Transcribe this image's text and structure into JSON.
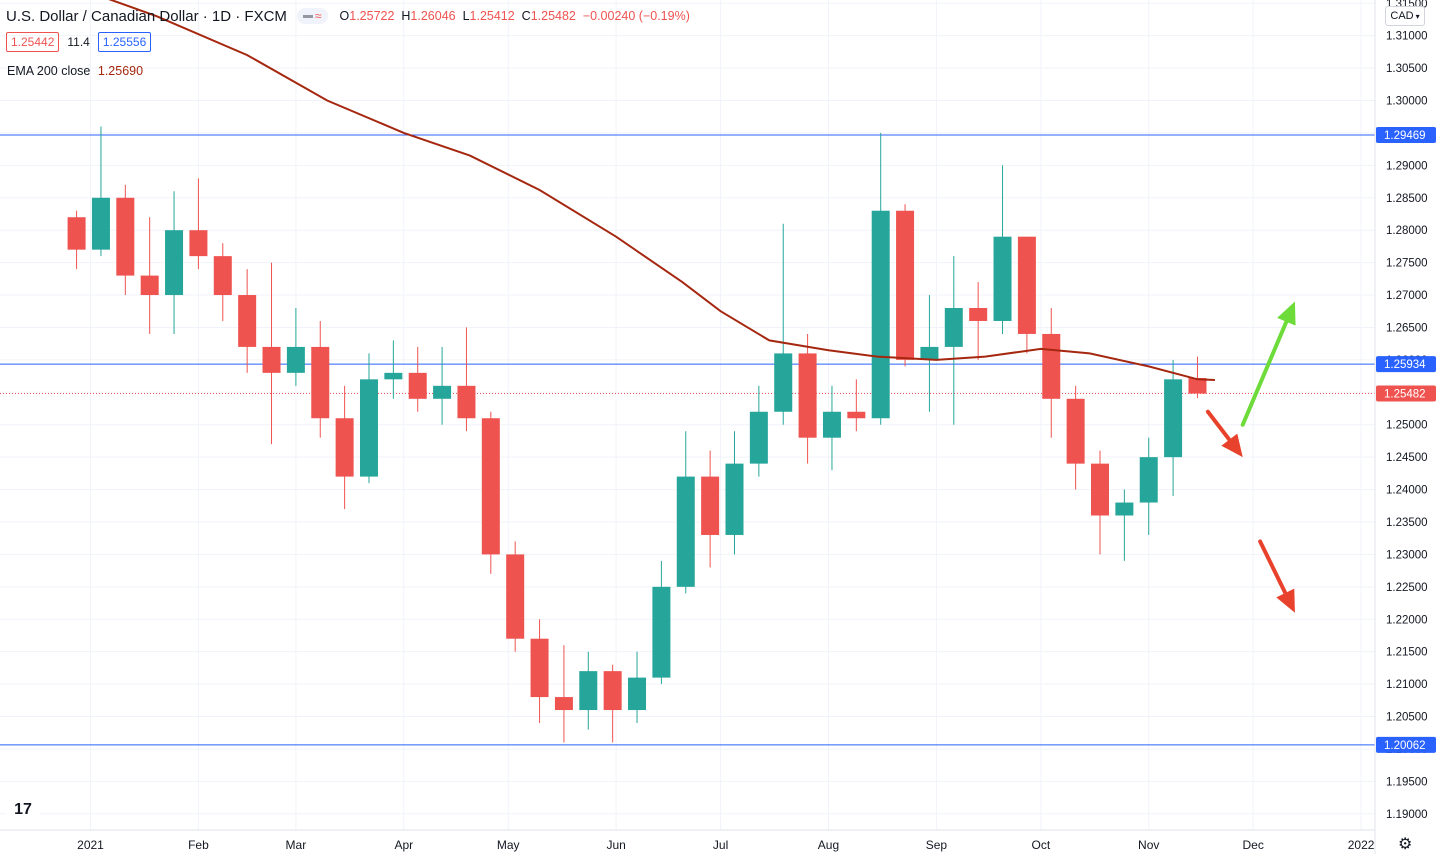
{
  "header": {
    "title": "U.S. Dollar / Canadian Dollar · 1D · FXCM",
    "pill_symbol": "≈",
    "ohlc": {
      "o_label": "O",
      "o": "1.25722",
      "h_label": "H",
      "h": "1.26046",
      "l_label": "L",
      "l": "1.25412",
      "c_label": "C",
      "c": "1.25482",
      "change": "−0.00240 (−0.19%)"
    },
    "bid": "1.25442",
    "spread": "11.4",
    "ask": "1.25556",
    "indicator_name": "EMA 200 close",
    "indicator_value": "1.25690"
  },
  "currency_button": "CAD",
  "logo_text": "17",
  "colors": {
    "up": "#26a69a",
    "down": "#ef5350",
    "ema": "#a5270f",
    "hline": "#2962ff",
    "arrow_green": "#6ddc3a",
    "arrow_red": "#e8412c"
  },
  "chart_data": {
    "type": "candlestick",
    "title": "U.S. Dollar / Canadian Dollar · 1D · FXCM",
    "ylim": [
      1.1875,
      1.3155
    ],
    "y_ticks": [
      "1.31500",
      "1.31000",
      "1.30500",
      "1.30000",
      "1.29500",
      "1.29000",
      "1.28500",
      "1.28000",
      "1.27500",
      "1.27000",
      "1.26500",
      "1.26000",
      "1.25500",
      "1.25000",
      "1.24500",
      "1.24000",
      "1.23500",
      "1.23000",
      "1.22500",
      "1.22000",
      "1.21500",
      "1.21000",
      "1.20500",
      "1.20000",
      "1.19500",
      "1.19000"
    ],
    "x_ticks": [
      {
        "label": "2021",
        "date": "2021-01-01"
      },
      {
        "label": "Feb",
        "date": "2021-02-01"
      },
      {
        "label": "Mar",
        "date": "2021-03-01"
      },
      {
        "label": "Apr",
        "date": "2021-04-01"
      },
      {
        "label": "May",
        "date": "2021-05-01"
      },
      {
        "label": "Jun",
        "date": "2021-06-01"
      },
      {
        "label": "Jul",
        "date": "2021-07-01"
      },
      {
        "label": "Aug",
        "date": "2021-08-01"
      },
      {
        "label": "Sep",
        "date": "2021-09-01"
      },
      {
        "label": "Oct",
        "date": "2021-10-01"
      },
      {
        "label": "Nov",
        "date": "2021-11-01"
      },
      {
        "label": "Dec",
        "date": "2021-12-01"
      },
      {
        "label": "2022",
        "date": "2022-01-01"
      }
    ],
    "x_range": [
      "2020-12-06",
      "2022-01-05"
    ],
    "price_levels": [
      {
        "value": 1.29469,
        "label": "1.29469",
        "style": "solid"
      },
      {
        "value": 1.25934,
        "label": "1.25934",
        "style": "solid"
      },
      {
        "value": 1.25482,
        "label": "1.25482",
        "style": "dotted-last-price"
      },
      {
        "value": 1.20062,
        "label": "1.20062",
        "style": "solid"
      }
    ],
    "ema_200": [
      {
        "date": "2020-12-25",
        "v": 1.318
      },
      {
        "date": "2021-01-20",
        "v": 1.313
      },
      {
        "date": "2021-02-15",
        "v": 1.307
      },
      {
        "date": "2021-03-10",
        "v": 1.3
      },
      {
        "date": "2021-04-01",
        "v": 1.295
      },
      {
        "date": "2021-04-20",
        "v": 1.2915
      },
      {
        "date": "2021-05-10",
        "v": 1.2862
      },
      {
        "date": "2021-06-01",
        "v": 1.279
      },
      {
        "date": "2021-06-20",
        "v": 1.272
      },
      {
        "date": "2021-07-01",
        "v": 1.2675
      },
      {
        "date": "2021-07-15",
        "v": 1.263
      },
      {
        "date": "2021-08-01",
        "v": 1.2615
      },
      {
        "date": "2021-08-15",
        "v": 1.2605
      },
      {
        "date": "2021-09-01",
        "v": 1.26
      },
      {
        "date": "2021-09-15",
        "v": 1.2605
      },
      {
        "date": "2021-10-01",
        "v": 1.2617
      },
      {
        "date": "2021-10-15",
        "v": 1.261
      },
      {
        "date": "2021-11-01",
        "v": 1.259
      },
      {
        "date": "2021-11-15",
        "v": 1.257
      },
      {
        "date": "2021-11-20",
        "v": 1.2569
      }
    ],
    "candles": [
      {
        "d": "2020-12-28",
        "o": 1.282,
        "h": 1.283,
        "l": 1.274,
        "c": 1.277
      },
      {
        "d": "2021-01-04",
        "o": 1.277,
        "h": 1.296,
        "l": 1.276,
        "c": 1.285
      },
      {
        "d": "2021-01-11",
        "o": 1.285,
        "h": 1.287,
        "l": 1.27,
        "c": 1.273
      },
      {
        "d": "2021-01-18",
        "o": 1.273,
        "h": 1.282,
        "l": 1.264,
        "c": 1.27
      },
      {
        "d": "2021-01-25",
        "o": 1.27,
        "h": 1.286,
        "l": 1.264,
        "c": 1.28
      },
      {
        "d": "2021-02-01",
        "o": 1.28,
        "h": 1.288,
        "l": 1.274,
        "c": 1.276
      },
      {
        "d": "2021-02-08",
        "o": 1.276,
        "h": 1.278,
        "l": 1.266,
        "c": 1.27
      },
      {
        "d": "2021-02-15",
        "o": 1.27,
        "h": 1.274,
        "l": 1.258,
        "c": 1.262
      },
      {
        "d": "2021-02-22",
        "o": 1.262,
        "h": 1.275,
        "l": 1.247,
        "c": 1.258
      },
      {
        "d": "2021-03-01",
        "o": 1.258,
        "h": 1.268,
        "l": 1.256,
        "c": 1.262
      },
      {
        "d": "2021-03-08",
        "o": 1.262,
        "h": 1.266,
        "l": 1.248,
        "c": 1.251
      },
      {
        "d": "2021-03-15",
        "o": 1.251,
        "h": 1.256,
        "l": 1.237,
        "c": 1.242
      },
      {
        "d": "2021-03-22",
        "o": 1.242,
        "h": 1.261,
        "l": 1.241,
        "c": 1.257
      },
      {
        "d": "2021-03-29",
        "o": 1.257,
        "h": 1.263,
        "l": 1.254,
        "c": 1.258
      },
      {
        "d": "2021-04-05",
        "o": 1.258,
        "h": 1.262,
        "l": 1.252,
        "c": 1.254
      },
      {
        "d": "2021-04-12",
        "o": 1.254,
        "h": 1.262,
        "l": 1.25,
        "c": 1.256
      },
      {
        "d": "2021-04-19",
        "o": 1.256,
        "h": 1.265,
        "l": 1.249,
        "c": 1.251
      },
      {
        "d": "2021-04-26",
        "o": 1.251,
        "h": 1.252,
        "l": 1.227,
        "c": 1.23
      },
      {
        "d": "2021-05-03",
        "o": 1.23,
        "h": 1.232,
        "l": 1.215,
        "c": 1.217
      },
      {
        "d": "2021-05-10",
        "o": 1.217,
        "h": 1.22,
        "l": 1.204,
        "c": 1.208
      },
      {
        "d": "2021-05-17",
        "o": 1.208,
        "h": 1.216,
        "l": 1.201,
        "c": 1.206
      },
      {
        "d": "2021-05-24",
        "o": 1.206,
        "h": 1.215,
        "l": 1.203,
        "c": 1.212
      },
      {
        "d": "2021-05-31",
        "o": 1.212,
        "h": 1.213,
        "l": 1.201,
        "c": 1.206
      },
      {
        "d": "2021-06-07",
        "o": 1.206,
        "h": 1.215,
        "l": 1.204,
        "c": 1.211
      },
      {
        "d": "2021-06-14",
        "o": 1.211,
        "h": 1.229,
        "l": 1.21,
        "c": 1.225
      },
      {
        "d": "2021-06-21",
        "o": 1.225,
        "h": 1.249,
        "l": 1.224,
        "c": 1.242
      },
      {
        "d": "2021-06-28",
        "o": 1.242,
        "h": 1.246,
        "l": 1.228,
        "c": 1.233
      },
      {
        "d": "2021-07-05",
        "o": 1.233,
        "h": 1.249,
        "l": 1.23,
        "c": 1.244
      },
      {
        "d": "2021-07-12",
        "o": 1.244,
        "h": 1.256,
        "l": 1.242,
        "c": 1.252
      },
      {
        "d": "2021-07-19",
        "o": 1.252,
        "h": 1.281,
        "l": 1.25,
        "c": 1.261
      },
      {
        "d": "2021-07-26",
        "o": 1.261,
        "h": 1.264,
        "l": 1.244,
        "c": 1.248
      },
      {
        "d": "2021-08-02",
        "o": 1.248,
        "h": 1.256,
        "l": 1.243,
        "c": 1.252
      },
      {
        "d": "2021-08-09",
        "o": 1.252,
        "h": 1.257,
        "l": 1.249,
        "c": 1.251
      },
      {
        "d": "2021-08-16",
        "o": 1.251,
        "h": 1.295,
        "l": 1.25,
        "c": 1.283
      },
      {
        "d": "2021-08-23",
        "o": 1.283,
        "h": 1.284,
        "l": 1.259,
        "c": 1.26
      },
      {
        "d": "2021-08-30",
        "o": 1.26,
        "h": 1.27,
        "l": 1.252,
        "c": 1.262
      },
      {
        "d": "2021-09-06",
        "o": 1.262,
        "h": 1.276,
        "l": 1.25,
        "c": 1.268
      },
      {
        "d": "2021-09-13",
        "o": 1.268,
        "h": 1.272,
        "l": 1.26,
        "c": 1.266
      },
      {
        "d": "2021-09-20",
        "o": 1.266,
        "h": 1.29,
        "l": 1.264,
        "c": 1.279
      },
      {
        "d": "2021-09-27",
        "o": 1.279,
        "h": 1.279,
        "l": 1.261,
        "c": 1.264
      },
      {
        "d": "2021-10-04",
        "o": 1.264,
        "h": 1.268,
        "l": 1.248,
        "c": 1.254
      },
      {
        "d": "2021-10-11",
        "o": 1.254,
        "h": 1.256,
        "l": 1.24,
        "c": 1.244
      },
      {
        "d": "2021-10-18",
        "o": 1.244,
        "h": 1.246,
        "l": 1.23,
        "c": 1.236
      },
      {
        "d": "2021-10-25",
        "o": 1.236,
        "h": 1.24,
        "l": 1.229,
        "c": 1.238
      },
      {
        "d": "2021-11-01",
        "o": 1.238,
        "h": 1.248,
        "l": 1.233,
        "c": 1.245
      },
      {
        "d": "2021-11-08",
        "o": 1.245,
        "h": 1.26,
        "l": 1.239,
        "c": 1.257
      },
      {
        "d": "2021-11-15",
        "o": 1.2572,
        "h": 1.2605,
        "l": 1.2541,
        "c": 1.2548
      }
    ],
    "annotations": [
      {
        "type": "arrow",
        "color": "red",
        "from": {
          "date": "2021-11-18",
          "v": 1.252
        },
        "to": {
          "date": "2021-11-28",
          "v": 1.245
        }
      },
      {
        "type": "arrow",
        "color": "green",
        "from": {
          "date": "2021-11-28",
          "v": 1.25
        },
        "to": {
          "date": "2021-12-13",
          "v": 1.269
        }
      },
      {
        "type": "arrow",
        "color": "red",
        "from": {
          "date": "2021-12-03",
          "v": 1.232
        },
        "to": {
          "date": "2021-12-13",
          "v": 1.221
        }
      }
    ]
  }
}
